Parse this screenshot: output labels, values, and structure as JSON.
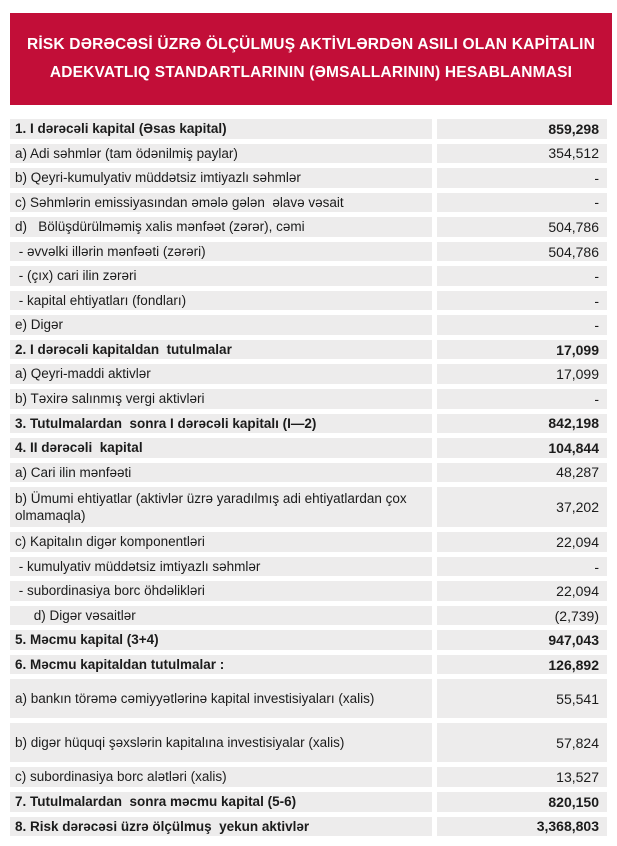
{
  "title": {
    "line1": "RİSK DƏRƏCƏSİ ÜZRƏ ÖLÇÜLMUŞ AKTİVLƏRDƏN ASILI OLAN KAPİTALIN",
    "line2": "ADEKVATLIQ STANDARTLARININ (ƏMSALLARININ) HESABLANMASI"
  },
  "colors": {
    "banner_bg": "#C20E38",
    "banner_text": "#FFFFFF",
    "row_bg": "#EDECEC",
    "text": "#1B1B1B"
  },
  "table": {
    "rows": [
      {
        "label": "1. I dərəcəli kapital (Əsas kapital)",
        "value": "859,298",
        "bold": true,
        "size": "n"
      },
      {
        "label": "a) Adi səhmlər (tam ödənilmiş paylar)",
        "value": "354,512",
        "bold": false,
        "size": "n"
      },
      {
        "label": "b) Qeyri-kumulyativ müddətsiz imtiyazlı səhmlər",
        "value": "-",
        "bold": false,
        "size": "n"
      },
      {
        "label": "c) Səhmlərin emissiyasından əmələ gələn  əlavə vəsait",
        "value": "-",
        "bold": false,
        "size": "n"
      },
      {
        "label": "d)   Bölüşdürülməmiş xalis mənfəət (zərər), cəmi",
        "value": "504,786",
        "bold": false,
        "size": "n"
      },
      {
        "label": " - əvvəlki illərin mənfəəti (zərəri)",
        "value": "504,786",
        "bold": false,
        "size": "n"
      },
      {
        "label": " - (çıx) cari ilin zərəri",
        "value": "-",
        "bold": false,
        "size": "n"
      },
      {
        "label": " - kapital ehtiyatları (fondları)",
        "value": "-",
        "bold": false,
        "size": "n"
      },
      {
        "label": "e) Digər",
        "value": "-",
        "bold": false,
        "size": "n"
      },
      {
        "label": "2. I dərəcəli kapitaldan  tutulmalar",
        "value": "17,099",
        "bold": true,
        "size": "n"
      },
      {
        "label": "a) Qeyri-maddi aktivlər",
        "value": "17,099",
        "bold": false,
        "size": "n"
      },
      {
        "label": "b) Təxirə salınmış vergi aktivləri",
        "value": "-",
        "bold": false,
        "size": "n"
      },
      {
        "label": "3. Tutulmalardan  sonra I dərəcəli kapitalı (I—2)",
        "value": "842,198",
        "bold": true,
        "size": "n"
      },
      {
        "label": "4. II dərəcəli  kapital",
        "value": "104,844",
        "bold": true,
        "size": "n"
      },
      {
        "label": "a) Cari ilin mənfəəti",
        "value": "48,287",
        "bold": false,
        "size": "n"
      },
      {
        "label": "b) Ümumi ehtiyatlar (aktivlər üzrə yaradılmış adi ehtiyatlardan çox olmamaqla)",
        "value": "37,202",
        "bold": false,
        "size": "t2"
      },
      {
        "label": "c) Kapitalın digər komponentləri",
        "value": "22,094",
        "bold": false,
        "size": "n"
      },
      {
        "label": " - kumulyativ müddətsiz imtiyazlı səhmlər",
        "value": "-",
        "bold": false,
        "size": "n"
      },
      {
        "label": " - subordinasiya borc öhdəlikləri",
        "value": "22,094",
        "bold": false,
        "size": "n"
      },
      {
        "label": "     d) Digər vəsaitlər",
        "value": "(2,739)",
        "bold": false,
        "size": "n"
      },
      {
        "label": "5. Məcmu kapital (3+4)",
        "value": "947,043",
        "bold": true,
        "size": "n"
      },
      {
        "label": "6. Məcmu kapitaldan tutulmalar :",
        "value": "126,892",
        "bold": true,
        "size": "n"
      },
      {
        "label": "a) bankın törəmə cəmiyyətlərinə kapital investisiyaları (xalis)",
        "value": "55,541",
        "bold": false,
        "size": "t"
      },
      {
        "label": "b) digər hüquqi şəxslərin kapitalına investisiyalar (xalis)",
        "value": "57,824",
        "bold": false,
        "size": "t"
      },
      {
        "label": "c) subordinasiya borc alətləri (xalis)",
        "value": "13,527",
        "bold": false,
        "size": "n"
      },
      {
        "label": "7. Tutulmalardan  sonra məcmu kapital (5-6)",
        "value": "820,150",
        "bold": true,
        "size": "n"
      },
      {
        "label": "8. Risk dərəcəsi üzrə ölçülmuş  yekun aktivlər",
        "value": "3,368,803",
        "bold": true,
        "size": "n"
      }
    ]
  }
}
